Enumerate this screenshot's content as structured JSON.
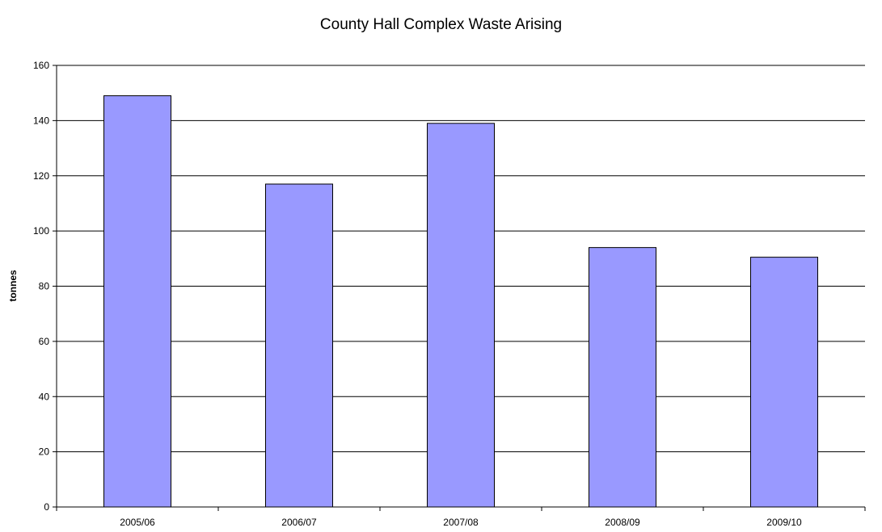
{
  "chart_data": {
    "type": "bar",
    "title": "County Hall Complex Waste Arising",
    "xlabel": "",
    "ylabel": "tonnes",
    "categories": [
      "2005/06",
      "2006/07",
      "2007/08",
      "2008/09",
      "2009/10"
    ],
    "values": [
      149,
      117,
      139,
      94,
      90.5
    ],
    "ylim": [
      0,
      160
    ],
    "yticks": [
      0,
      20,
      40,
      60,
      80,
      100,
      120,
      140,
      160
    ],
    "grid": true,
    "legend": "none",
    "bar_color": "#9999ff",
    "bar_edge_color": "#000000"
  }
}
